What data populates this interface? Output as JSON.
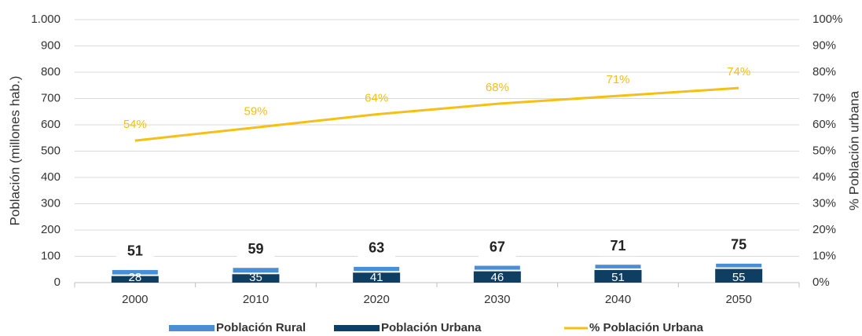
{
  "chart_data": {
    "type": "bar",
    "y_label": "Población (millones hab.)",
    "y2_label": "% Población urbana",
    "categories": [
      "2000",
      "2010",
      "2020",
      "2030",
      "2040",
      "2050"
    ],
    "series": [
      {
        "name": "Población Rural",
        "color": "#4a8fd6",
        "values": [
          23,
          24,
          22,
          21,
          20,
          20
        ]
      },
      {
        "name": "Población Urbana",
        "color": "#0e3f63",
        "values": [
          28,
          35,
          41,
          46,
          51,
          55
        ]
      },
      {
        "name": "% Población Urbana",
        "color": "#f5c016",
        "type": "line",
        "axis": "y2",
        "values": [
          54,
          59,
          64,
          68,
          71,
          74
        ],
        "value_labels": [
          "54%",
          "59%",
          "64%",
          "68%",
          "71%",
          "74%"
        ]
      }
    ],
    "total_labels": [
      51,
      59,
      63,
      67,
      71,
      75
    ],
    "ylim": [
      0,
      1000
    ],
    "yticks": [
      0,
      100,
      200,
      300,
      400,
      500,
      600,
      700,
      800,
      900,
      {
        "value": 1000,
        "label": "1.000"
      }
    ],
    "y2lim": [
      0,
      100
    ],
    "y2ticks": [
      {
        "value": 0,
        "label": "0%"
      },
      {
        "value": 10,
        "label": "10%"
      },
      {
        "value": 20,
        "label": "20%"
      },
      {
        "value": 30,
        "label": "30%"
      },
      {
        "value": 40,
        "label": "40%"
      },
      {
        "value": 50,
        "label": "50%"
      },
      {
        "value": 60,
        "label": "60%"
      },
      {
        "value": 70,
        "label": "70%"
      },
      {
        "value": 80,
        "label": "80%"
      },
      {
        "value": 90,
        "label": "90%"
      },
      {
        "value": 100,
        "label": "100%"
      }
    ],
    "grid": true
  }
}
